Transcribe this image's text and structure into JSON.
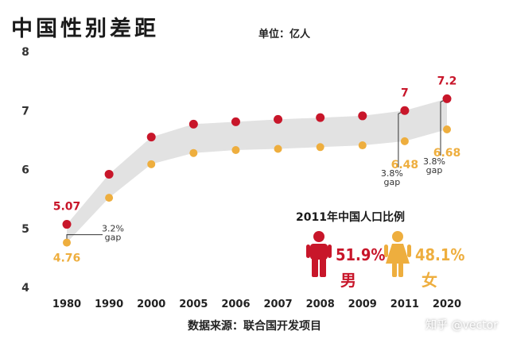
{
  "title": "中国性别差距",
  "unit": "单位：亿人",
  "source": "数据来源：联合国开发项目",
  "watermark": "知乎 @vector",
  "colors": {
    "male": "#c8162a",
    "female": "#eeae3e",
    "band": "#e2e2e2",
    "text": "#222222"
  },
  "chart_data": {
    "type": "line",
    "title": "中国性别差距",
    "ylabel": "单位：亿人",
    "ylim": [
      4,
      8
    ],
    "yticks": [
      4,
      5,
      6,
      7,
      8
    ],
    "categories": [
      "1980",
      "1990",
      "2000",
      "2005",
      "2006",
      "2007",
      "2008",
      "2009",
      "2011",
      "2020"
    ],
    "series": [
      {
        "name": "男",
        "values": [
          5.07,
          5.92,
          6.55,
          6.77,
          6.81,
          6.85,
          6.88,
          6.91,
          7.0,
          7.2
        ]
      },
      {
        "name": "女",
        "values": [
          4.76,
          5.52,
          6.09,
          6.28,
          6.33,
          6.35,
          6.38,
          6.41,
          6.48,
          6.68
        ]
      }
    ],
    "value_labels": [
      {
        "text": "5.07",
        "category": "1980",
        "series": "男"
      },
      {
        "text": "4.76",
        "category": "1980",
        "series": "女"
      },
      {
        "text": "7",
        "category": "2011",
        "series": "男"
      },
      {
        "text": "6.48",
        "category": "2011",
        "series": "女"
      },
      {
        "text": "7.2",
        "category": "2020",
        "series": "男"
      },
      {
        "text": "6.68",
        "category": "2020",
        "series": "女"
      }
    ],
    "gap_annotations": [
      {
        "category": "1980",
        "pct": "3.2%",
        "word": "gap"
      },
      {
        "category": "2011",
        "pct": "3.8%",
        "word": "gap"
      },
      {
        "category": "2020",
        "pct": "3.8%",
        "word": "gap"
      }
    ]
  },
  "ratio_panel": {
    "title": "2011年中国人口比例",
    "male": {
      "pct": "51.9%",
      "label": "男"
    },
    "female": {
      "pct": "48.1%",
      "label": "女"
    }
  }
}
